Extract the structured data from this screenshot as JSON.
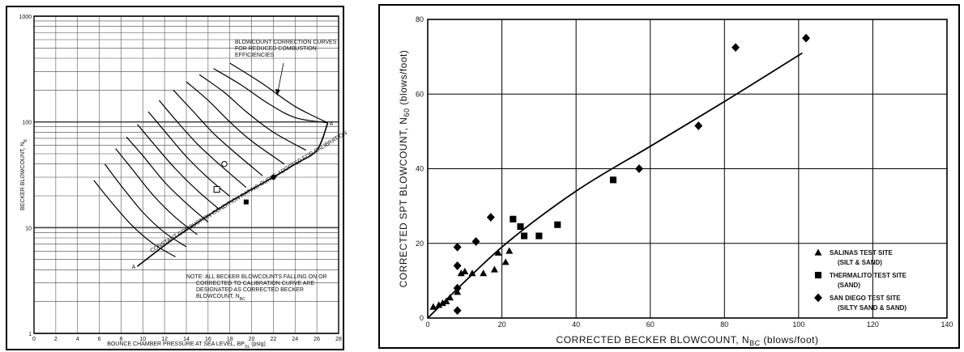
{
  "chart_data": [
    {
      "type": "line",
      "ylabel": "BECKER BLOWCOUNT, N",
      "ylabel_sub": "B",
      "xlabel": "BOUNCE CHAMBER PRESSURE AT SEA LEVEL, BP",
      "xlabel_sub": "SL",
      "xlabel_unit": "(psig)",
      "x_ticks": [
        "0",
        "2",
        "4",
        "6",
        "8",
        "10",
        "12",
        "14",
        "16",
        "18",
        "20",
        "22",
        "24",
        "26",
        "28"
      ],
      "y_ticks": [
        "1",
        "10",
        "100",
        "1000"
      ],
      "xlim": [
        0,
        28
      ],
      "ylim": [
        1,
        1000
      ],
      "y_scale": "log",
      "grid": true,
      "annotations": {
        "top": [
          "BLOWCOUNT CORRECTION CURVES",
          "FOR REDUCED COMBUSTION",
          "EFFICIENCIES"
        ],
        "calibration_curve": "CONSTANT COMBUSTION CONDITION RATING CURVE ADOPTED FOR CALIBRATION",
        "note": [
          "NOTE: ALL BECKER BLOWCOUNTS FALLING ON OR",
          "CORRECTED TO CALIBRATION CURVE ARE",
          "DESIGNATED AS CORRECTED BECKER",
          "BLOWCOUNT, N"
        ],
        "note_sub": "BC",
        "label_a": "A"
      },
      "calibration_curve": {
        "x": [
          9.5,
          12,
          14,
          16,
          18,
          20,
          22,
          24,
          26,
          27
        ],
        "y": [
          4.3,
          6.8,
          9.5,
          13,
          17.5,
          23,
          30,
          40,
          54,
          98
        ]
      },
      "correction_curves": [
        {
          "x": [
            5.5,
            7,
            9,
            11,
            13
          ],
          "y": [
            28,
            18,
            10.5,
            7,
            5.3
          ]
        },
        {
          "x": [
            6.5,
            8,
            10,
            12,
            14
          ],
          "y": [
            40,
            25,
            14,
            9,
            6.6
          ]
        },
        {
          "x": [
            7.5,
            9,
            11,
            13,
            15
          ],
          "y": [
            56,
            36,
            20,
            12.5,
            8.6
          ]
        },
        {
          "x": [
            8.5,
            10,
            12,
            14,
            16
          ],
          "y": [
            72,
            48,
            27,
            17,
            11.3
          ]
        },
        {
          "x": [
            9.5,
            11,
            13,
            15,
            17
          ],
          "y": [
            95,
            62,
            36,
            22.5,
            15
          ]
        },
        {
          "x": [
            10.5,
            12,
            14,
            16,
            18
          ],
          "y": [
            125,
            82,
            47,
            29.5,
            19.8
          ]
        },
        {
          "x": [
            11.5,
            13,
            15,
            17,
            19.5
          ],
          "y": [
            160,
            105,
            62,
            40,
            24
          ]
        },
        {
          "x": [
            12.8,
            14.5,
            16.5,
            18.5,
            21
          ],
          "y": [
            200,
            130,
            78,
            51,
            31
          ]
        },
        {
          "x": [
            14,
            16,
            18,
            20,
            23
          ],
          "y": [
            240,
            160,
            100,
            66,
            40
          ]
        },
        {
          "x": [
            15.2,
            17.5,
            19.5,
            22,
            25
          ],
          "y": [
            280,
            190,
            125,
            80,
            54
          ]
        },
        {
          "x": [
            16.5,
            19,
            21.5,
            24,
            27
          ],
          "y": [
            320,
            225,
            150,
            110,
            98
          ]
        },
        {
          "x": [
            18,
            21,
            24,
            27
          ],
          "y": [
            360,
            230,
            140,
            98
          ]
        }
      ],
      "points": [
        {
          "x": 22,
          "y": 30,
          "marker": "filled-circle"
        },
        {
          "x": 19.5,
          "y": 17.5,
          "marker": "filled-square"
        },
        {
          "x": 17.5,
          "y": 40,
          "marker": "open-circle"
        },
        {
          "x": 16.8,
          "y": 23,
          "marker": "open-square"
        }
      ]
    },
    {
      "type": "scatter",
      "ylabel": "CORRECTED SPT BLOWCOUNT, N",
      "ylabel_sub": "60",
      "ylabel_unit": "(blows/foot)",
      "xlabel": "CORRECTED BECKER BLOWCOUNT, N",
      "xlabel_sub": "BC",
      "xlabel_unit": "(blows/foot)",
      "x_ticks": [
        "0",
        "20",
        "40",
        "60",
        "80",
        "100",
        "120",
        "140"
      ],
      "y_ticks": [
        "0",
        "20",
        "40",
        "60",
        "80"
      ],
      "xlim": [
        0,
        140
      ],
      "ylim": [
        0,
        80
      ],
      "grid": true,
      "legend_position": "bottom-right",
      "series": [
        {
          "name": "SALINAS TEST SITE",
          "name_sub": "(SILT & SAND)",
          "marker": "triangle",
          "x": [
            1.5,
            3,
            4,
            5,
            6,
            8,
            9,
            10,
            12,
            15,
            18,
            19,
            21,
            22
          ],
          "y": [
            3,
            3.5,
            4,
            4.5,
            5.5,
            7,
            12,
            12.5,
            12,
            12,
            13,
            17.5,
            15,
            18
          ]
        },
        {
          "name": "THERMALITO TEST SITE",
          "name_sub": "(SAND)",
          "marker": "square",
          "x": [
            23,
            25,
            26,
            30,
            35,
            50
          ],
          "y": [
            26.5,
            24.5,
            22,
            22,
            25,
            37
          ]
        },
        {
          "name": "SAN DIEGO TEST SITE",
          "name_sub": "(SILTY SAND & SAND)",
          "marker": "diamond",
          "x": [
            8,
            8,
            8,
            8,
            13,
            17,
            57,
            73,
            83,
            102
          ],
          "y": [
            2,
            8,
            14,
            19,
            20.5,
            27,
            40,
            51.5,
            72.5,
            75
          ]
        }
      ],
      "fit_line": {
        "x": [
          0,
          20,
          40,
          60,
          80,
          101
        ],
        "y": [
          0,
          19,
          34,
          46,
          58,
          71
        ]
      }
    }
  ]
}
